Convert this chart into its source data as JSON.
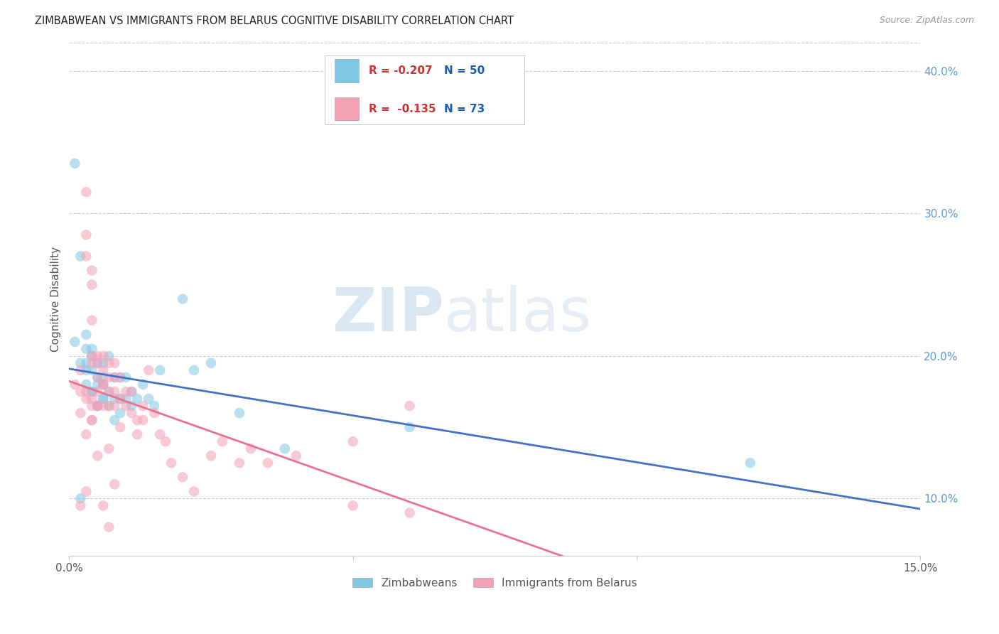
{
  "title": "ZIMBABWEAN VS IMMIGRANTS FROM BELARUS COGNITIVE DISABILITY CORRELATION CHART",
  "source": "Source: ZipAtlas.com",
  "ylabel": "Cognitive Disability",
  "xlabel": "",
  "xlim": [
    0.0,
    0.15
  ],
  "ylim": [
    0.06,
    0.42
  ],
  "xticks": [
    0.0,
    0.05,
    0.1,
    0.15
  ],
  "xtick_labels": [
    "0.0%",
    "",
    "",
    "15.0%"
  ],
  "yticks_right": [
    0.1,
    0.2,
    0.3,
    0.4
  ],
  "ytick_labels_right": [
    "10.0%",
    "20.0%",
    "30.0%",
    "40.0%"
  ],
  "blue_R": "-0.207",
  "blue_N": "50",
  "pink_R": "-0.135",
  "pink_N": "73",
  "blue_color": "#7ec8e3",
  "pink_color": "#f4a0b5",
  "blue_line_color": "#4472c4",
  "pink_line_color": "#e87090",
  "watermark_zip": "ZIP",
  "watermark_atlas": "atlas",
  "legend_label_blue": "Zimbabweans",
  "legend_label_pink": "Immigrants from Belarus",
  "blue_x": [
    0.001,
    0.001,
    0.002,
    0.002,
    0.003,
    0.003,
    0.003,
    0.003,
    0.004,
    0.004,
    0.004,
    0.004,
    0.005,
    0.005,
    0.005,
    0.005,
    0.006,
    0.006,
    0.006,
    0.006,
    0.007,
    0.007,
    0.008,
    0.008,
    0.009,
    0.009,
    0.01,
    0.01,
    0.011,
    0.011,
    0.012,
    0.013,
    0.014,
    0.015,
    0.016,
    0.02,
    0.022,
    0.025,
    0.03,
    0.038,
    0.06,
    0.12,
    0.002,
    0.003,
    0.004,
    0.005,
    0.006,
    0.007,
    0.008,
    0.009
  ],
  "blue_y": [
    0.335,
    0.21,
    0.27,
    0.195,
    0.215,
    0.205,
    0.19,
    0.18,
    0.205,
    0.2,
    0.19,
    0.175,
    0.195,
    0.185,
    0.18,
    0.165,
    0.195,
    0.185,
    0.18,
    0.17,
    0.2,
    0.175,
    0.185,
    0.17,
    0.185,
    0.17,
    0.185,
    0.17,
    0.175,
    0.165,
    0.17,
    0.18,
    0.17,
    0.165,
    0.19,
    0.24,
    0.19,
    0.195,
    0.16,
    0.135,
    0.15,
    0.125,
    0.1,
    0.195,
    0.175,
    0.165,
    0.17,
    0.165,
    0.155,
    0.16
  ],
  "pink_x": [
    0.001,
    0.002,
    0.002,
    0.003,
    0.003,
    0.003,
    0.004,
    0.004,
    0.004,
    0.004,
    0.005,
    0.005,
    0.005,
    0.005,
    0.006,
    0.006,
    0.006,
    0.007,
    0.007,
    0.007,
    0.008,
    0.008,
    0.008,
    0.009,
    0.009,
    0.01,
    0.01,
    0.011,
    0.011,
    0.012,
    0.012,
    0.013,
    0.013,
    0.014,
    0.015,
    0.016,
    0.017,
    0.018,
    0.02,
    0.022,
    0.025,
    0.027,
    0.03,
    0.032,
    0.035,
    0.04,
    0.05,
    0.06,
    0.003,
    0.004,
    0.002,
    0.003,
    0.004,
    0.005,
    0.006,
    0.007,
    0.008,
    0.009,
    0.003,
    0.004,
    0.002,
    0.003,
    0.004,
    0.005,
    0.006,
    0.007,
    0.05,
    0.06,
    0.004,
    0.005,
    0.006,
    0.007,
    0.008
  ],
  "pink_y": [
    0.18,
    0.19,
    0.175,
    0.315,
    0.285,
    0.27,
    0.26,
    0.25,
    0.225,
    0.195,
    0.195,
    0.185,
    0.175,
    0.165,
    0.2,
    0.19,
    0.18,
    0.195,
    0.185,
    0.175,
    0.195,
    0.185,
    0.175,
    0.185,
    0.17,
    0.175,
    0.165,
    0.175,
    0.16,
    0.155,
    0.145,
    0.165,
    0.155,
    0.19,
    0.16,
    0.145,
    0.14,
    0.125,
    0.115,
    0.105,
    0.13,
    0.14,
    0.125,
    0.135,
    0.125,
    0.13,
    0.14,
    0.165,
    0.17,
    0.165,
    0.16,
    0.175,
    0.17,
    0.165,
    0.18,
    0.165,
    0.165,
    0.15,
    0.145,
    0.155,
    0.095,
    0.105,
    0.155,
    0.13,
    0.095,
    0.08,
    0.095,
    0.09,
    0.2,
    0.2,
    0.165,
    0.135,
    0.11
  ]
}
